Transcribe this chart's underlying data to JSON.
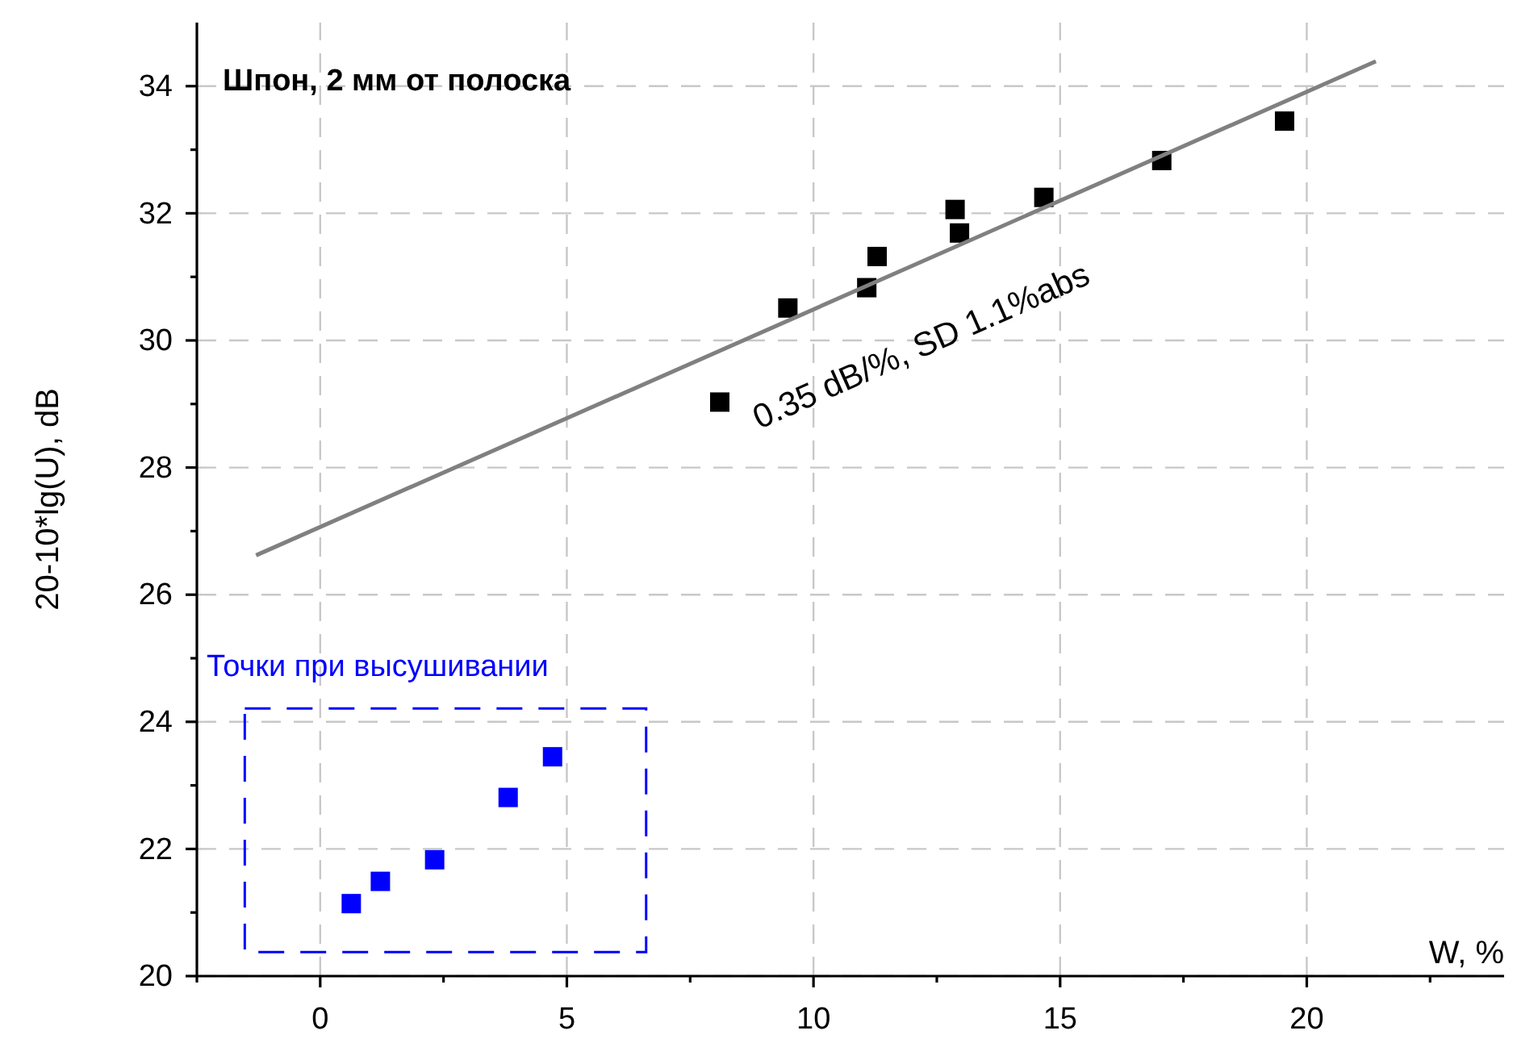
{
  "chart_data": {
    "type": "scatter",
    "title": "Шпон, 2 мм от полоска",
    "xlabel": "W, %",
    "ylabel": "20-10*lg(U), dB",
    "xlim": [
      -2.5,
      24
    ],
    "ylim": [
      20,
      35
    ],
    "xticks": [
      {
        "value": -2.5,
        "label": null
      },
      0,
      {
        "value": 2.5,
        "label": null
      },
      5,
      {
        "value": 7.5,
        "label": null
      },
      10,
      {
        "value": 12.5,
        "label": null
      },
      15,
      {
        "value": 17.5,
        "label": null
      },
      20,
      {
        "value": 22.5,
        "label": null
      }
    ],
    "yticks": [
      20,
      {
        "value": 21,
        "label": null
      },
      22,
      {
        "value": 23,
        "label": null
      },
      24,
      {
        "value": 25,
        "label": null
      },
      26,
      {
        "value": 27,
        "label": null
      },
      28,
      {
        "value": 29,
        "label": null
      },
      30,
      {
        "value": 31,
        "label": null
      },
      32,
      {
        "value": 33,
        "label": null
      },
      34
    ],
    "grid": true,
    "marker": "square",
    "series": [
      {
        "color": "#000000",
        "x": [
          8.1,
          9.48,
          11.08,
          11.29,
          12.87,
          12.96,
          14.67,
          17.06,
          19.55
        ],
        "values": [
          29.03,
          30.51,
          30.83,
          31.32,
          32.06,
          31.69,
          32.25,
          32.83,
          33.45
        ]
      },
      {
        "color": "#0000ff",
        "x": [
          0.63,
          1.22,
          2.32,
          3.81,
          4.71
        ],
        "values": [
          21.14,
          21.49,
          21.83,
          22.81,
          23.45
        ]
      },
      {
        "type": "line",
        "color": "#808080",
        "marker": "none",
        "line_style": "solid",
        "x": [
          -1.3,
          21.4
        ],
        "values": [
          26.62,
          34.39
        ]
      }
    ],
    "annotations": [
      "0.35 dB/%, SD 1.1%abs",
      "Точки при высушивании"
    ]
  }
}
